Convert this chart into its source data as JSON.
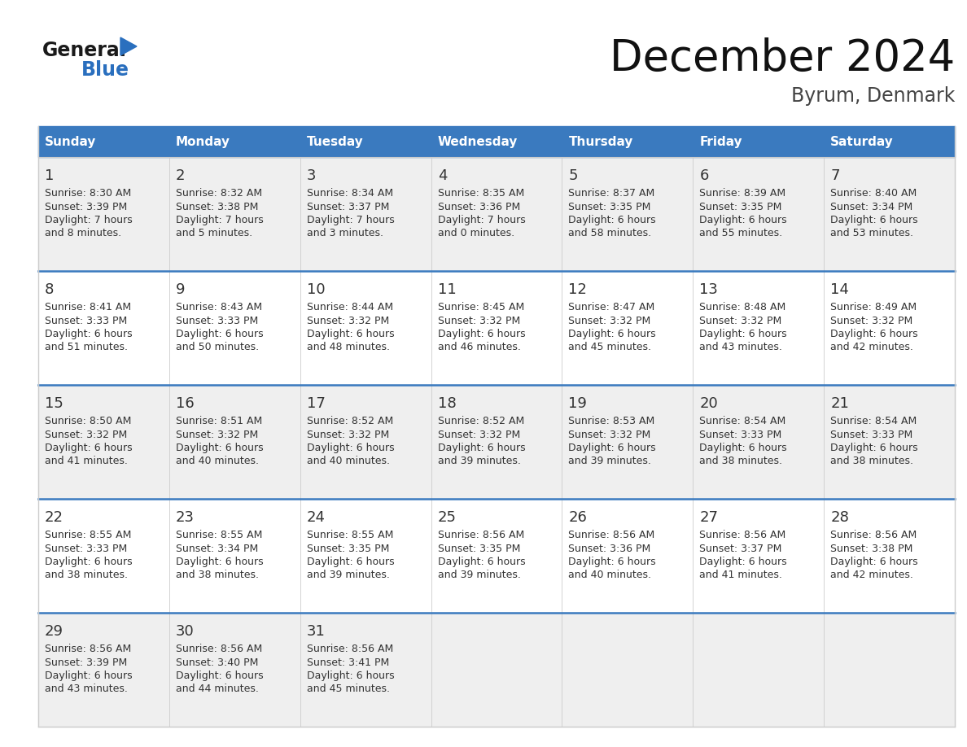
{
  "title": "December 2024",
  "subtitle": "Byrum, Denmark",
  "header_bg_color": "#3a7abf",
  "header_text_color": "#ffffff",
  "day_names": [
    "Sunday",
    "Monday",
    "Tuesday",
    "Wednesday",
    "Thursday",
    "Friday",
    "Saturday"
  ],
  "row_bg_even": "#efefef",
  "row_bg_odd": "#ffffff",
  "cell_text_color": "#333333",
  "grid_color": "#cccccc",
  "row_divider_color": "#3a7abf",
  "logo_general_color": "#1a1a1a",
  "logo_blue_color": "#2a6fbe",
  "logo_triangle_color": "#2a6fbe",
  "weeks": [
    [
      {
        "day": 1,
        "sunrise": "8:30 AM",
        "sunset": "3:39 PM",
        "daylight_line1": "7 hours",
        "daylight_line2": "and 8 minutes."
      },
      {
        "day": 2,
        "sunrise": "8:32 AM",
        "sunset": "3:38 PM",
        "daylight_line1": "7 hours",
        "daylight_line2": "and 5 minutes."
      },
      {
        "day": 3,
        "sunrise": "8:34 AM",
        "sunset": "3:37 PM",
        "daylight_line1": "7 hours",
        "daylight_line2": "and 3 minutes."
      },
      {
        "day": 4,
        "sunrise": "8:35 AM",
        "sunset": "3:36 PM",
        "daylight_line1": "7 hours",
        "daylight_line2": "and 0 minutes."
      },
      {
        "day": 5,
        "sunrise": "8:37 AM",
        "sunset": "3:35 PM",
        "daylight_line1": "6 hours",
        "daylight_line2": "and 58 minutes."
      },
      {
        "day": 6,
        "sunrise": "8:39 AM",
        "sunset": "3:35 PM",
        "daylight_line1": "6 hours",
        "daylight_line2": "and 55 minutes."
      },
      {
        "day": 7,
        "sunrise": "8:40 AM",
        "sunset": "3:34 PM",
        "daylight_line1": "6 hours",
        "daylight_line2": "and 53 minutes."
      }
    ],
    [
      {
        "day": 8,
        "sunrise": "8:41 AM",
        "sunset": "3:33 PM",
        "daylight_line1": "6 hours",
        "daylight_line2": "and 51 minutes."
      },
      {
        "day": 9,
        "sunrise": "8:43 AM",
        "sunset": "3:33 PM",
        "daylight_line1": "6 hours",
        "daylight_line2": "and 50 minutes."
      },
      {
        "day": 10,
        "sunrise": "8:44 AM",
        "sunset": "3:32 PM",
        "daylight_line1": "6 hours",
        "daylight_line2": "and 48 minutes."
      },
      {
        "day": 11,
        "sunrise": "8:45 AM",
        "sunset": "3:32 PM",
        "daylight_line1": "6 hours",
        "daylight_line2": "and 46 minutes."
      },
      {
        "day": 12,
        "sunrise": "8:47 AM",
        "sunset": "3:32 PM",
        "daylight_line1": "6 hours",
        "daylight_line2": "and 45 minutes."
      },
      {
        "day": 13,
        "sunrise": "8:48 AM",
        "sunset": "3:32 PM",
        "daylight_line1": "6 hours",
        "daylight_line2": "and 43 minutes."
      },
      {
        "day": 14,
        "sunrise": "8:49 AM",
        "sunset": "3:32 PM",
        "daylight_line1": "6 hours",
        "daylight_line2": "and 42 minutes."
      }
    ],
    [
      {
        "day": 15,
        "sunrise": "8:50 AM",
        "sunset": "3:32 PM",
        "daylight_line1": "6 hours",
        "daylight_line2": "and 41 minutes."
      },
      {
        "day": 16,
        "sunrise": "8:51 AM",
        "sunset": "3:32 PM",
        "daylight_line1": "6 hours",
        "daylight_line2": "and 40 minutes."
      },
      {
        "day": 17,
        "sunrise": "8:52 AM",
        "sunset": "3:32 PM",
        "daylight_line1": "6 hours",
        "daylight_line2": "and 40 minutes."
      },
      {
        "day": 18,
        "sunrise": "8:52 AM",
        "sunset": "3:32 PM",
        "daylight_line1": "6 hours",
        "daylight_line2": "and 39 minutes."
      },
      {
        "day": 19,
        "sunrise": "8:53 AM",
        "sunset": "3:32 PM",
        "daylight_line1": "6 hours",
        "daylight_line2": "and 39 minutes."
      },
      {
        "day": 20,
        "sunrise": "8:54 AM",
        "sunset": "3:33 PM",
        "daylight_line1": "6 hours",
        "daylight_line2": "and 38 minutes."
      },
      {
        "day": 21,
        "sunrise": "8:54 AM",
        "sunset": "3:33 PM",
        "daylight_line1": "6 hours",
        "daylight_line2": "and 38 minutes."
      }
    ],
    [
      {
        "day": 22,
        "sunrise": "8:55 AM",
        "sunset": "3:33 PM",
        "daylight_line1": "6 hours",
        "daylight_line2": "and 38 minutes."
      },
      {
        "day": 23,
        "sunrise": "8:55 AM",
        "sunset": "3:34 PM",
        "daylight_line1": "6 hours",
        "daylight_line2": "and 38 minutes."
      },
      {
        "day": 24,
        "sunrise": "8:55 AM",
        "sunset": "3:35 PM",
        "daylight_line1": "6 hours",
        "daylight_line2": "and 39 minutes."
      },
      {
        "day": 25,
        "sunrise": "8:56 AM",
        "sunset": "3:35 PM",
        "daylight_line1": "6 hours",
        "daylight_line2": "and 39 minutes."
      },
      {
        "day": 26,
        "sunrise": "8:56 AM",
        "sunset": "3:36 PM",
        "daylight_line1": "6 hours",
        "daylight_line2": "and 40 minutes."
      },
      {
        "day": 27,
        "sunrise": "8:56 AM",
        "sunset": "3:37 PM",
        "daylight_line1": "6 hours",
        "daylight_line2": "and 41 minutes."
      },
      {
        "day": 28,
        "sunrise": "8:56 AM",
        "sunset": "3:38 PM",
        "daylight_line1": "6 hours",
        "daylight_line2": "and 42 minutes."
      }
    ],
    [
      {
        "day": 29,
        "sunrise": "8:56 AM",
        "sunset": "3:39 PM",
        "daylight_line1": "6 hours",
        "daylight_line2": "and 43 minutes."
      },
      {
        "day": 30,
        "sunrise": "8:56 AM",
        "sunset": "3:40 PM",
        "daylight_line1": "6 hours",
        "daylight_line2": "and 44 minutes."
      },
      {
        "day": 31,
        "sunrise": "8:56 AM",
        "sunset": "3:41 PM",
        "daylight_line1": "6 hours",
        "daylight_line2": "and 45 minutes."
      },
      null,
      null,
      null,
      null
    ]
  ]
}
